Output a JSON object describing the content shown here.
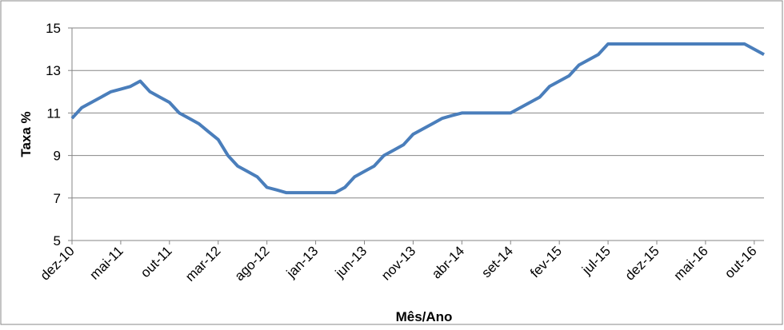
{
  "chart_data": {
    "type": "line",
    "x_label": "Mês/Ano",
    "y_label": "Taxa %",
    "categories": [
      "dez-10",
      null,
      null,
      null,
      null,
      "mai-11",
      null,
      null,
      null,
      null,
      "out-11",
      null,
      null,
      null,
      null,
      "mar-12",
      null,
      null,
      null,
      null,
      "ago-12",
      null,
      null,
      null,
      null,
      "jan-13",
      null,
      null,
      null,
      null,
      "jun-13",
      null,
      null,
      null,
      null,
      "nov-13",
      null,
      null,
      null,
      null,
      "abr-14",
      null,
      null,
      null,
      null,
      "set-14",
      null,
      null,
      null,
      null,
      "fev-15",
      null,
      null,
      null,
      null,
      "jul-15",
      null,
      null,
      null,
      null,
      "dez-15",
      null,
      null,
      null,
      null,
      "mai-16",
      null,
      null,
      null,
      null,
      "out-16",
      null
    ],
    "series": [
      {
        "name": "Taxa %",
        "color": "#4a7ebb",
        "values": [
          10.75,
          11.25,
          11.5,
          11.75,
          12,
          12.12,
          12.25,
          12.5,
          12,
          11.75,
          11.5,
          11,
          10.75,
          10.5,
          10.12,
          9.75,
          9,
          8.5,
          8.25,
          8,
          7.5,
          7.38,
          7.25,
          7.25,
          7.25,
          7.25,
          7.25,
          7.25,
          7.5,
          8,
          8.25,
          8.5,
          9,
          9.25,
          9.5,
          10,
          10.25,
          10.5,
          10.75,
          10.88,
          11,
          11,
          11,
          11,
          11,
          11,
          11.25,
          11.5,
          11.75,
          12.25,
          12.5,
          12.75,
          13.25,
          13.5,
          13.75,
          14.25,
          14.25,
          14.25,
          14.25,
          14.25,
          14.25,
          14.25,
          14.25,
          14.25,
          14.25,
          14.25,
          14.25,
          14.25,
          14.25,
          14.25,
          14,
          13.75
        ]
      }
    ],
    "ylim": [
      5,
      15
    ],
    "yticks": [
      5,
      7,
      9,
      11,
      13,
      15
    ],
    "grid": true
  }
}
